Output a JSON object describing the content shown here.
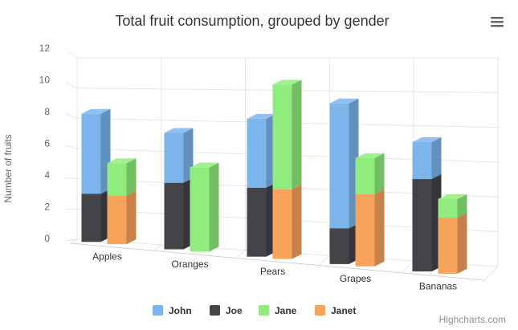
{
  "chart_data": {
    "type": "bar",
    "subtype": "3d-stacked-column",
    "title": "Total fruit consumption, grouped by gender",
    "ylabel": "Number of fruits",
    "xlabel": "",
    "ylim": [
      0,
      12
    ],
    "yticks": [
      0,
      2,
      4,
      6,
      8,
      10,
      12
    ],
    "categories": [
      "Apples",
      "Oranges",
      "Pears",
      "Grapes",
      "Bananas"
    ],
    "stacks": [
      {
        "stack": "male",
        "series": [
          "Joe",
          "John"
        ]
      },
      {
        "stack": "female",
        "series": [
          "Janet",
          "Jane"
        ]
      }
    ],
    "series": [
      {
        "name": "John",
        "stack": "male",
        "color": "#7cb5ec",
        "values": [
          5,
          3,
          4,
          7,
          2
        ]
      },
      {
        "name": "Joe",
        "stack": "male",
        "color": "#434348",
        "values": [
          3,
          4,
          4,
          2,
          5
        ]
      },
      {
        "name": "Jane",
        "stack": "female",
        "color": "#90ed7d",
        "values": [
          2,
          5,
          6,
          2,
          1
        ]
      },
      {
        "name": "Janet",
        "stack": "female",
        "color": "#f7a35c",
        "values": [
          3,
          0,
          4,
          4,
          3
        ]
      }
    ],
    "legend_position": "bottom-center",
    "grid": true
  },
  "credits": {
    "label": "Highcharts.com"
  },
  "menu": {
    "icon": "hamburger-menu-icon"
  }
}
